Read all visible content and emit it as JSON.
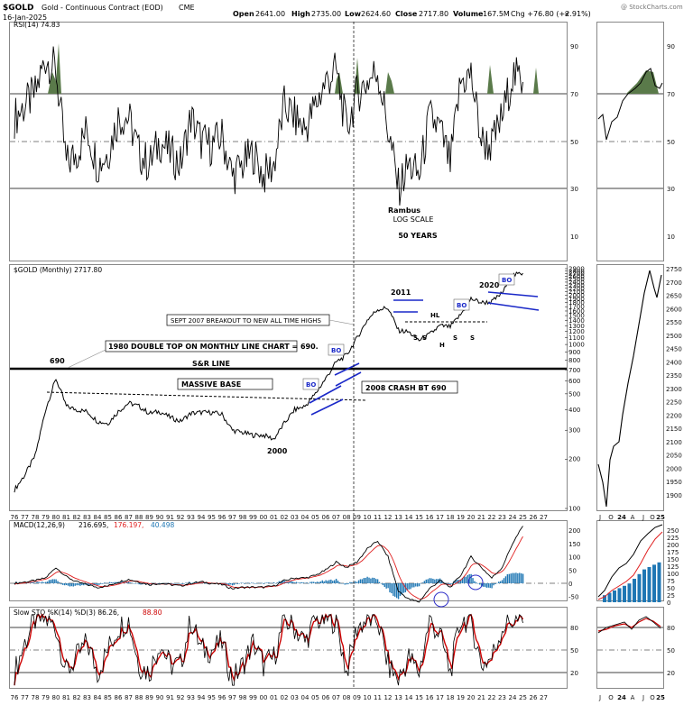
{
  "header": {
    "symbol": "$GOLD",
    "description": "Gold - Continuous Contract (EOD)",
    "exchange": "CME",
    "date": "16-Jan-2025",
    "ohlc": {
      "open_label": "Open",
      "open": "2641.00",
      "high_label": "High",
      "high": "2735.00",
      "low_label": "Low",
      "low": "2624.60",
      "close_label": "Close",
      "close": "2717.80",
      "volume_label": "Volume",
      "volume": "167.5M",
      "change": "Chg +76.80 (+2.91%)"
    },
    "watermark": "@ StockCharts.com"
  },
  "rsi_panel": {
    "label": "RSI(14) 74.83",
    "ticks": [
      "90",
      "70",
      "50",
      "30",
      "10"
    ],
    "notes": [
      "Rambus",
      "LOG SCALE",
      "50 YEARS"
    ]
  },
  "price_panel": {
    "label": "$GOLD (Monthly) 2717.80",
    "ticks": [
      "2900",
      "2800",
      "2700",
      "2600",
      "2500",
      "2400",
      "2300",
      "2200",
      "2100",
      "2000",
      "1900",
      "1800",
      "1700",
      "1600",
      "1500",
      "1400",
      "1300",
      "1200",
      "1100",
      "1000",
      "900",
      "800",
      "700",
      "600",
      "500",
      "400",
      "300",
      "200",
      "100"
    ],
    "annotations": {
      "peak_690": "690",
      "double_top": "1980 DOUBLE TOP ON MONTHLY LINE CHART = 690.",
      "sr_line": "S&R LINE",
      "massive_base": "MASSIVE BASE",
      "low_2000": "2000",
      "bo": "BO",
      "breakout_2007": "SEPT 2007 BREAKOUT TO NEW ALL TIME HIGHS",
      "crash_2008": "2008 CRASH BT 690",
      "top_2011": "2011",
      "top_2020": "2020",
      "hl": "HL",
      "s": "S",
      "h": "H"
    }
  },
  "macd_panel": {
    "label_prefix": "MACD(12,26,9)",
    "macd": "216.695,",
    "signal": "176.197,",
    "hist": "40.498",
    "ticks": [
      "200",
      "150",
      "100",
      "50",
      "0",
      "-50"
    ],
    "colors": {
      "macd": "#000000",
      "signal": "#e02020",
      "hist": "#1f77b4"
    }
  },
  "sto_panel": {
    "label": "Slow STO %K(14) %D(3) 86.26,",
    "d_value": "88.80",
    "ticks": [
      "80",
      "50",
      "20"
    ],
    "colors": {
      "k": "#000000",
      "d": "#cc0000"
    }
  },
  "right_panels": {
    "rsi_ticks": [
      "90",
      "70",
      "50",
      "30",
      "10"
    ],
    "price_ticks": [
      "2750",
      "2700",
      "2650",
      "2600",
      "2550",
      "2500",
      "2450",
      "2400",
      "2350",
      "2300",
      "2250",
      "2200",
      "2150",
      "2100",
      "2050",
      "2000",
      "1950",
      "1900"
    ],
    "macd_ticks": [
      "250",
      "225",
      "200",
      "175",
      "150",
      "125",
      "100",
      "75",
      "50",
      "25",
      "0"
    ],
    "sto_ticks": [
      "80",
      "50",
      "20"
    ],
    "x_labels": [
      "J",
      "O",
      "24",
      "A",
      "J",
      "O",
      "25"
    ]
  },
  "x_axis_labels": [
    "76",
    "77",
    "78",
    "79",
    "80",
    "81",
    "82",
    "83",
    "84",
    "85",
    "86",
    "87",
    "88",
    "89",
    "90",
    "91",
    "92",
    "93",
    "94",
    "95",
    "96",
    "97",
    "98",
    "99",
    "00",
    "01",
    "02",
    "03",
    "04",
    "05",
    "06",
    "07",
    "08",
    "09",
    "10",
    "11",
    "12",
    "13",
    "14",
    "15",
    "16",
    "17",
    "18",
    "19",
    "20",
    "21",
    "22",
    "23",
    "24",
    "25",
    "26",
    "27"
  ],
  "chart_data": {
    "type": "line",
    "title": "$GOLD (Monthly) 2717.80",
    "x": [
      1976,
      1977,
      1978,
      1979,
      1980,
      1981,
      1982,
      1983,
      1984,
      1985,
      1986,
      1987,
      1988,
      1989,
      1990,
      1991,
      1992,
      1993,
      1994,
      1995,
      1996,
      1997,
      1998,
      1999,
      2000,
      2001,
      2002,
      2003,
      2004,
      2005,
      2006,
      2007,
      2008,
      2009,
      2010,
      2011,
      2012,
      2013,
      2014,
      2015,
      2016,
      2017,
      2018,
      2019,
      2020,
      2021,
      2022,
      2023,
      2024,
      2025
    ],
    "y_scale": "log",
    "series": [
      {
        "name": "$GOLD (Monthly)",
        "values": [
          130,
          160,
          210,
          400,
          620,
          420,
          400,
          390,
          340,
          330,
          390,
          440,
          420,
          380,
          390,
          360,
          340,
          380,
          385,
          385,
          375,
          300,
          290,
          280,
          280,
          265,
          330,
          400,
          420,
          500,
          620,
          780,
          860,
          1090,
          1410,
          1640,
          1670,
          1220,
          1190,
          1060,
          1150,
          1300,
          1280,
          1520,
          1900,
          1800,
          1820,
          2060,
          2640,
          2717
        ]
      },
      {
        "name": "RSI(14)",
        "values": [
          60,
          65,
          70,
          85,
          80,
          40,
          45,
          55,
          40,
          45,
          60,
          60,
          45,
          40,
          50,
          45,
          40,
          60,
          50,
          48,
          52,
          35,
          40,
          45,
          35,
          40,
          65,
          60,
          55,
          65,
          75,
          80,
          55,
          70,
          75,
          80,
          55,
          30,
          40,
          35,
          60,
          55,
          40,
          75,
          78,
          50,
          48,
          60,
          78,
          75
        ]
      },
      {
        "name": "MACD",
        "values": [
          0,
          5,
          10,
          20,
          60,
          25,
          5,
          -5,
          -15,
          -10,
          5,
          15,
          5,
          -5,
          0,
          -5,
          -10,
          0,
          5,
          0,
          -5,
          -20,
          -15,
          -15,
          -15,
          -10,
          10,
          20,
          20,
          30,
          50,
          80,
          60,
          80,
          130,
          160,
          100,
          -30,
          -60,
          -70,
          -20,
          10,
          -15,
          30,
          100,
          60,
          20,
          60,
          150,
          216
        ]
      },
      {
        "name": "Slow STO %K",
        "values": [
          20,
          60,
          90,
          90,
          80,
          20,
          40,
          60,
          20,
          50,
          80,
          90,
          30,
          20,
          60,
          30,
          30,
          90,
          50,
          50,
          60,
          10,
          30,
          60,
          30,
          40,
          90,
          80,
          60,
          90,
          90,
          90,
          20,
          80,
          90,
          90,
          30,
          10,
          40,
          20,
          90,
          70,
          20,
          90,
          90,
          30,
          40,
          80,
          90,
          86
        ]
      }
    ],
    "annotations": [
      "690",
      "2000",
      "2011",
      "2020",
      "S&R LINE",
      "MASSIVE BASE"
    ]
  }
}
